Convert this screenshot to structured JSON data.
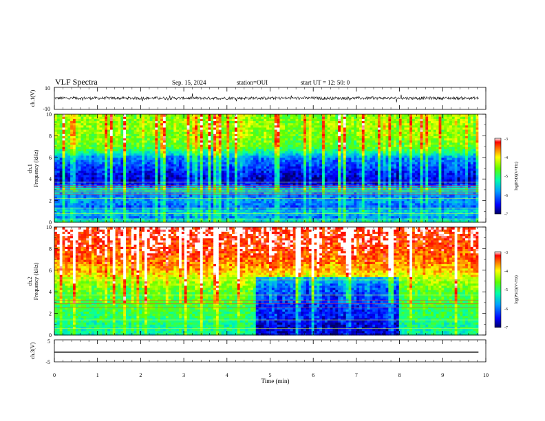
{
  "header": {
    "title": "VLF Spectra",
    "date": "Sep. 15, 2024",
    "station": "station=OUI",
    "start": "start UT =  12: 50: 0"
  },
  "chart_data": [
    {
      "type": "line",
      "panel": "ch1_waveform",
      "ylabel": "ch.1(V)",
      "ylim": [
        -10,
        10
      ],
      "y_tick_labels": [
        "10",
        "-10"
      ],
      "baseline": 0.2,
      "noise_amplitude": 1.3,
      "x_tick_labels": [
        "0",
        "1",
        "2",
        "3",
        "4",
        "5",
        "6",
        "7",
        "8",
        "9",
        "10"
      ],
      "xlim": [
        0,
        10
      ],
      "data_end": 9.83
    },
    {
      "type": "heatmap",
      "panel": "ch1_spectrogram",
      "ylabel": "ch.1\nFrequency (kHz)",
      "ylabel_line1": "ch.1",
      "ylabel_line2": "Frequency (kHz)",
      "ylim": [
        0,
        10
      ],
      "y_tick_labels": [
        "0",
        "2",
        "4",
        "6",
        "8",
        "10"
      ],
      "xlim": [
        0,
        10
      ],
      "data_end": 9.83,
      "colorbar": {
        "label": "log(PSD)(V²/Hz)",
        "range": [
          -7,
          -3
        ],
        "tick_labels": [
          "-3",
          "-4",
          "-5",
          "-6",
          "-7"
        ]
      },
      "profile_log_psd": [
        {
          "f": 0.0,
          "v": -5.2
        },
        {
          "f": 0.5,
          "v": -6.0
        },
        {
          "f": 1.0,
          "v": -5.6
        },
        {
          "f": 1.5,
          "v": -6.2
        },
        {
          "f": 2.0,
          "v": -5.9
        },
        {
          "f": 2.5,
          "v": -6.1
        },
        {
          "f": 3.0,
          "v": -5.4
        },
        {
          "f": 3.5,
          "v": -6.6
        },
        {
          "f": 4.0,
          "v": -6.9
        },
        {
          "f": 5.0,
          "v": -6.5
        },
        {
          "f": 6.0,
          "v": -6.1
        },
        {
          "f": 6.5,
          "v": -5.4
        },
        {
          "f": 7.0,
          "v": -4.9
        },
        {
          "f": 8.0,
          "v": -4.7
        },
        {
          "f": 9.0,
          "v": -4.6
        },
        {
          "f": 10.0,
          "v": -4.7
        }
      ],
      "narrowband_lines_khz": [
        0.3,
        0.8,
        1.3,
        2.2,
        2.6,
        2.8,
        3.0,
        3.2,
        3.4,
        3.7
      ]
    },
    {
      "type": "heatmap",
      "panel": "ch2_spectrogram",
      "ylabel_line1": "ch.2",
      "ylabel_line2": "Frequency (kHz)",
      "ylim": [
        0,
        10
      ],
      "y_tick_labels": [
        "0",
        "2",
        "4",
        "6",
        "8",
        "10"
      ],
      "xlim": [
        0,
        10
      ],
      "data_end": 9.83,
      "colorbar": {
        "label": "log(PSD)(V²/Hz)",
        "range": [
          -7,
          -3
        ],
        "tick_labels": [
          "-3",
          "-4",
          "-5",
          "-6",
          "-7"
        ]
      },
      "profile_log_psd": [
        {
          "f": 0.0,
          "v": -5.3
        },
        {
          "f": 1.0,
          "v": -5.2
        },
        {
          "f": 2.0,
          "v": -5.0
        },
        {
          "f": 3.0,
          "v": -4.9
        },
        {
          "f": 4.0,
          "v": -4.9
        },
        {
          "f": 5.0,
          "v": -4.5
        },
        {
          "f": 6.0,
          "v": -4.0
        },
        {
          "f": 7.0,
          "v": -3.7
        },
        {
          "f": 8.0,
          "v": -3.5
        },
        {
          "f": 9.0,
          "v": -3.4
        },
        {
          "f": 10.0,
          "v": -3.3
        }
      ],
      "quiet_region_minutes": [
        4.65,
        8.0
      ],
      "quiet_region_max_khz": 5.5,
      "narrowband_lines_khz": [
        0.6,
        1.4,
        2.5,
        2.9,
        3.2,
        3.7,
        5.1
      ]
    },
    {
      "type": "line",
      "panel": "ch3_waveform",
      "ylabel": "ch.3(V)",
      "ylim": [
        -5,
        5
      ],
      "y_tick_labels": [
        "5",
        "-5"
      ],
      "baseline": -0.6,
      "xlabel": "Time (min)",
      "x_tick_labels": [
        "0",
        "1",
        "2",
        "3",
        "4",
        "5",
        "6",
        "7",
        "8",
        "9",
        "10"
      ],
      "xlim": [
        0,
        10
      ],
      "data_end": 9.83
    }
  ]
}
